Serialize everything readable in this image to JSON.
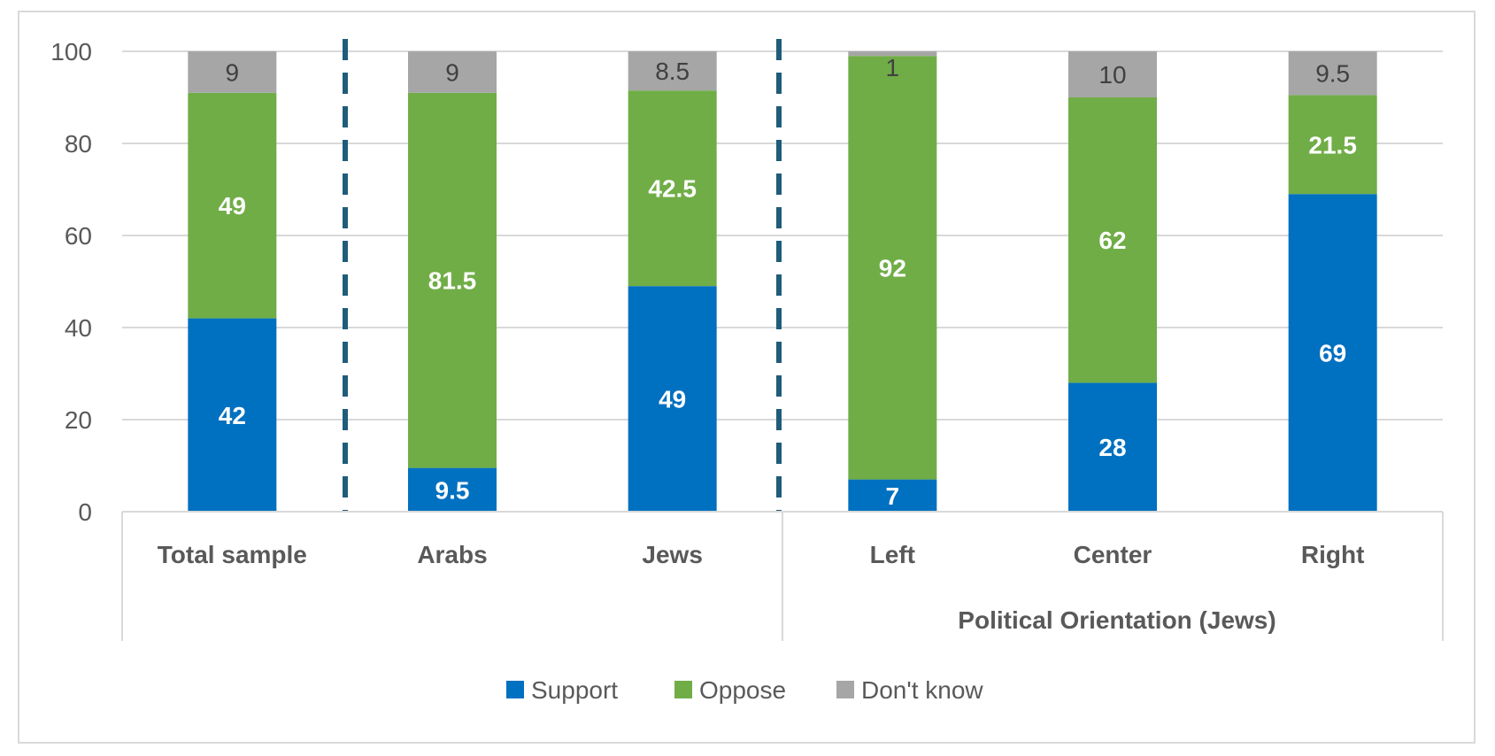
{
  "chart_data": {
    "type": "bar",
    "stacked": true,
    "categories": [
      "Total sample",
      "Arabs",
      "Jews",
      "Left",
      "Center",
      "Right"
    ],
    "category_group": {
      "label": "Political Orientation (Jews)",
      "members": [
        "Left",
        "Center",
        "Right"
      ]
    },
    "series": [
      {
        "name": "Support",
        "color": "#0070c0",
        "values": [
          42,
          9.5,
          49,
          7,
          28,
          69
        ]
      },
      {
        "name": "Oppose",
        "color": "#70ad47",
        "values": [
          49,
          81.5,
          42.5,
          92,
          62,
          21.5
        ]
      },
      {
        "name": "Don't know",
        "color": "#a6a6a6",
        "values": [
          9,
          9,
          8.5,
          1,
          10,
          9.5
        ]
      }
    ],
    "ylim": [
      0,
      100
    ],
    "yticks": [
      0,
      20,
      40,
      60,
      80,
      100
    ],
    "grid": true,
    "legend": "bottom-center",
    "title": "",
    "xlabel": "",
    "ylabel": ""
  }
}
